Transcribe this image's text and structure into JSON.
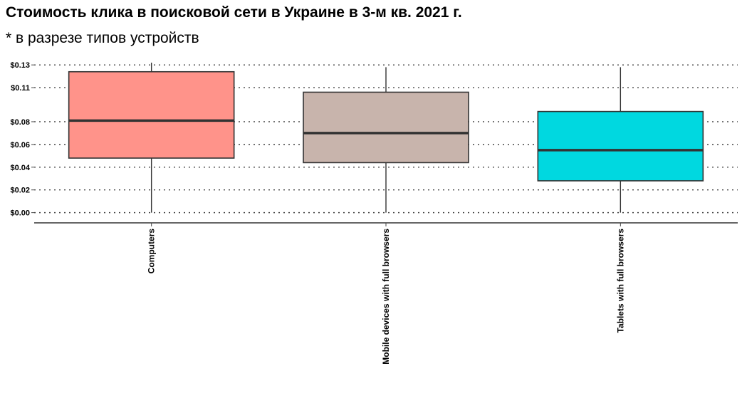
{
  "chart_data": {
    "type": "box",
    "title": "Стоимость клика в поисковой сети в Украине в 3-м кв. 2021 г.",
    "subtitle": "* в разрезе типов устройств",
    "y_ticks": [
      {
        "value": 0.0,
        "label": "$0.00"
      },
      {
        "value": 0.02,
        "label": "$0.02"
      },
      {
        "value": 0.04,
        "label": "$0.04"
      },
      {
        "value": 0.06,
        "label": "$0.06"
      },
      {
        "value": 0.08,
        "label": "$0.08"
      },
      {
        "value": 0.11,
        "label": "$0.11"
      },
      {
        "value": 0.13,
        "label": "$0.13"
      }
    ],
    "ylim": [
      -0.009,
      0.137
    ],
    "grid": true,
    "categories": [
      "Computers",
      "Mobile devices with full browsers",
      "Tablets with full browsers"
    ],
    "boxes": [
      {
        "category": "Computers",
        "min": 0.0,
        "q1": 0.048,
        "median": 0.081,
        "q3": 0.124,
        "max": 0.132,
        "color": "#ff938a"
      },
      {
        "category": "Mobile devices with full browsers",
        "min": 0.0,
        "q1": 0.044,
        "median": 0.07,
        "q3": 0.106,
        "max": 0.128,
        "color": "#c8b4ac"
      },
      {
        "category": "Tablets with full browsers",
        "min": 0.0,
        "q1": 0.028,
        "median": 0.055,
        "q3": 0.089,
        "max": 0.128,
        "color": "#00d8e0"
      }
    ]
  }
}
